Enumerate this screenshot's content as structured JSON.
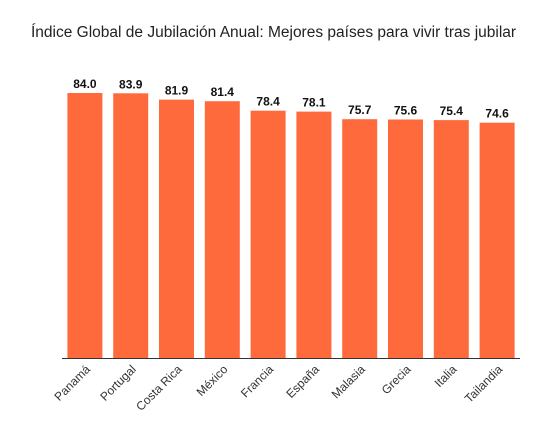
{
  "chart_data": {
    "type": "bar",
    "title": "Índice Global de Jubilación Anual: Mejores países para vivir tras jubilar",
    "xlabel": "",
    "ylabel": "",
    "categories": [
      "Panamá",
      "Portugal",
      "Costa Rica",
      "México",
      "Francia",
      "España",
      "Malasia",
      "Grecia",
      "Italia",
      "Tailandia"
    ],
    "values": [
      84.0,
      83.9,
      81.9,
      81.4,
      78.4,
      78.1,
      75.7,
      75.6,
      75.4,
      74.6
    ],
    "value_labels": [
      "84.0",
      "83.9",
      "81.9",
      "81.4",
      "78.4",
      "78.1",
      "75.7",
      "75.6",
      "75.4",
      "74.6"
    ],
    "ylim": [
      0,
      84.0
    ],
    "grid": false,
    "legend": "none",
    "bar_color": "#FF6A3D",
    "axis_color": "#333333"
  }
}
